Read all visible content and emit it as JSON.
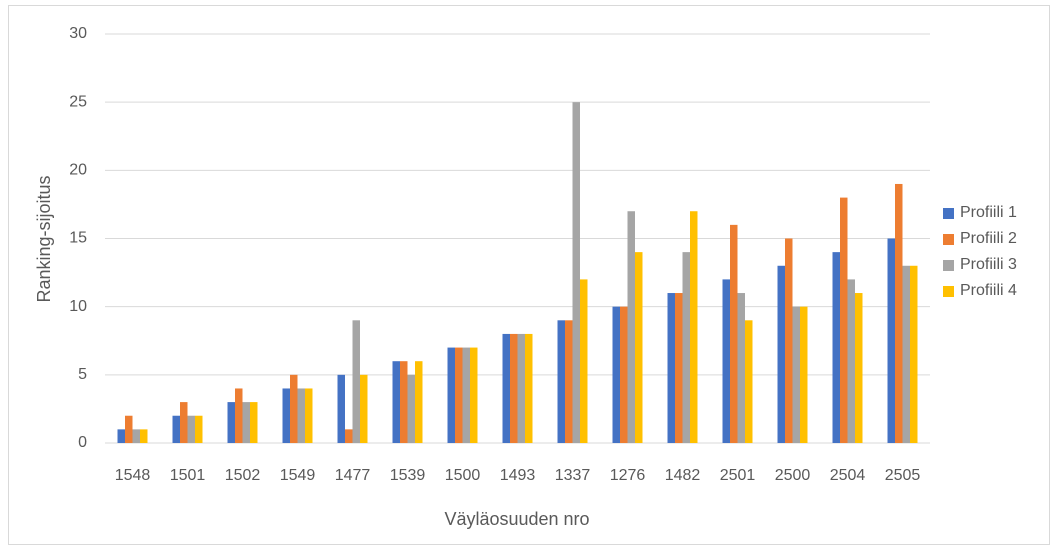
{
  "chart_data": {
    "type": "bar",
    "x_label": "Väyläosuuden nro",
    "y_label": "Ranking-sijoitus",
    "categories": [
      "1548",
      "1501",
      "1502",
      "1549",
      "1477",
      "1539",
      "1500",
      "1493",
      "1337",
      "1276",
      "1482",
      "2501",
      "2500",
      "2504",
      "2505"
    ],
    "series": [
      {
        "name": "Profiili 1",
        "color": "#4472c4",
        "values": [
          1,
          2,
          3,
          4,
          5,
          6,
          7,
          8,
          9,
          10,
          11,
          12,
          13,
          14,
          15
        ]
      },
      {
        "name": "Profiili 2",
        "color": "#ed7d31",
        "values": [
          2,
          3,
          4,
          5,
          1,
          6,
          7,
          8,
          9,
          10,
          11,
          16,
          15,
          18,
          19
        ]
      },
      {
        "name": "Profiili 3",
        "color": "#a5a5a5",
        "values": [
          1,
          2,
          3,
          4,
          9,
          5,
          7,
          8,
          25,
          17,
          14,
          11,
          10,
          12,
          13
        ]
      },
      {
        "name": "Profiili 4",
        "color": "#ffc000",
        "values": [
          1,
          2,
          3,
          4,
          5,
          6,
          7,
          8,
          12,
          14,
          17,
          9,
          10,
          11,
          13
        ]
      }
    ],
    "ylim": [
      0,
      30
    ],
    "yticks": [
      0,
      5,
      10,
      15,
      20,
      25,
      30
    ],
    "grid": true,
    "legend": "right"
  }
}
